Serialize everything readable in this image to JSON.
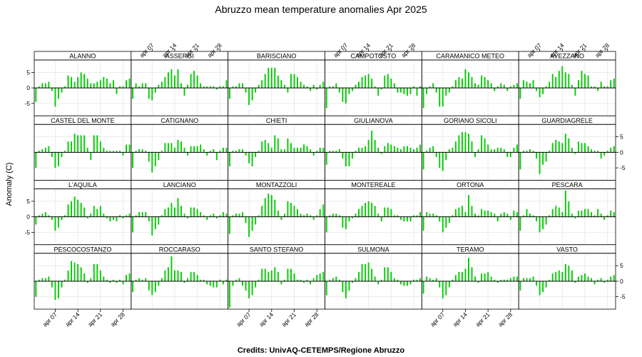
{
  "chart_data": {
    "type": "bar",
    "title": "Abruzzo mean temperature anomalies Apr 2025",
    "ylabel": "Anomaly (C)",
    "caption": "Credits: UnivAQ-CETEMPS/Regione Abruzzo",
    "ylim": [
      -9,
      9
    ],
    "y_ticks": [
      -5,
      0,
      5
    ],
    "x_range": [
      1,
      30
    ],
    "x_ticks": [
      {
        "day": 7,
        "label": "apr 07"
      },
      {
        "day": 14,
        "label": "apr 14"
      },
      {
        "day": 21,
        "label": "apr 21"
      },
      {
        "day": 28,
        "label": "apr 28"
      }
    ],
    "grid": true,
    "bar_color": "#00cc00",
    "layout": {
      "columns": 6,
      "rows": 4
    },
    "series": [
      {
        "name": "ALANNO",
        "values": [
          -4.5,
          0.5,
          1.5,
          1.5,
          2.0,
          -1.0,
          -6.0,
          -3.5,
          -1.5,
          0.5,
          4.0,
          3.5,
          2.0,
          3.5,
          5.0,
          4.5,
          3.0,
          1.5,
          1.5,
          2.0,
          2.5,
          3.5,
          3.0,
          1.5,
          2.5,
          -2.0,
          0.5,
          0.5,
          2.5,
          3.0
        ]
      },
      {
        "name": "ASSERGI",
        "values": [
          -3.5,
          1.5,
          0.5,
          1.5,
          1.5,
          -3.5,
          -4.0,
          -1.5,
          1.0,
          2.0,
          3.5,
          5.0,
          6.0,
          4.0,
          6.0,
          1.5,
          -2.5,
          1.0,
          4.5,
          5.5,
          4.0,
          1.5,
          0.5,
          0.5,
          0.5,
          0.5,
          -0.5,
          0.5,
          0.5,
          2.5
        ]
      },
      {
        "name": "BARISCIANO",
        "values": [
          -3.5,
          0.5,
          0.5,
          1.5,
          1.5,
          -1.5,
          -5.5,
          -4.0,
          -1.5,
          1.0,
          2.5,
          4.5,
          6.5,
          6.5,
          6.5,
          4.0,
          2.5,
          1.0,
          -1.5,
          4.5,
          4.5,
          3.5,
          2.0,
          1.0,
          0.5,
          -1.0,
          1.0,
          -0.5,
          1.0,
          2.0
        ]
      },
      {
        "name": "CAMPOTOSTO",
        "values": [
          -6.5,
          0.5,
          0.5,
          1.5,
          -1.5,
          -4.5,
          -5.0,
          -2.0,
          -1.0,
          1.0,
          2.0,
          3.5,
          4.0,
          4.5,
          3.0,
          0.5,
          -2.5,
          -0.5,
          4.0,
          4.5,
          3.0,
          1.5,
          -1.5,
          -1.5,
          -2.0,
          -2.5,
          -2.0,
          0.5,
          -2.5,
          0.5
        ]
      },
      {
        "name": "CARAMANICO METEO",
        "values": [
          -6.5,
          -2.0,
          0.5,
          1.5,
          -1.5,
          -6.0,
          -6.0,
          -2.5,
          -1.5,
          0.5,
          2.5,
          3.5,
          3.0,
          6.0,
          5.0,
          3.5,
          1.5,
          1.0,
          4.0,
          3.5,
          2.5,
          1.5,
          -1.0,
          0.5,
          1.5,
          1.0,
          -1.0,
          0.5,
          1.0,
          1.5
        ]
      },
      {
        "name": "AVEZZANO",
        "values": [
          -3.5,
          2.5,
          2.0,
          1.5,
          2.5,
          -1.0,
          -3.0,
          -2.0,
          0.5,
          2.0,
          4.5,
          3.5,
          5.5,
          7.0,
          5.0,
          4.5,
          1.0,
          -2.5,
          2.5,
          5.5,
          4.5,
          4.0,
          0.5,
          0.5,
          -1.0,
          2.0,
          0.5,
          0.5,
          2.5,
          3.0
        ]
      },
      {
        "name": "CASTEL DEL MONTE",
        "values": [
          -5.0,
          0.5,
          1.0,
          1.5,
          2.0,
          -1.5,
          -5.0,
          -4.5,
          -1.5,
          0.5,
          3.5,
          3.5,
          6.0,
          5.5,
          5.5,
          5.5,
          1.5,
          -2.5,
          5.5,
          5.5,
          3.5,
          1.5,
          0.5,
          0.5,
          0.5,
          0.5,
          0.5,
          -1.0,
          2.5,
          2.5
        ]
      },
      {
        "name": "CATIGNANO",
        "values": [
          -5.0,
          0.5,
          1.0,
          1.0,
          0.5,
          -3.0,
          -6.5,
          -4.5,
          -2.5,
          0.5,
          3.0,
          3.0,
          3.0,
          1.5,
          4.0,
          3.5,
          1.5,
          -1.0,
          2.0,
          2.0,
          2.0,
          2.5,
          1.0,
          -1.0,
          0.5,
          1.0,
          -2.5,
          0.5,
          1.5,
          1.5
        ]
      },
      {
        "name": "CHIETI",
        "values": [
          -4.5,
          0.5,
          0.5,
          1.0,
          1.0,
          -1.0,
          -3.5,
          -4.5,
          -1.5,
          0.5,
          3.5,
          4.0,
          3.0,
          1.5,
          5.5,
          4.5,
          1.0,
          1.0,
          4.5,
          3.0,
          1.5,
          1.5,
          1.5,
          2.5,
          2.0,
          1.0,
          -1.0,
          0.5,
          1.5,
          1.5
        ]
      },
      {
        "name": "GIULIANOVA",
        "values": [
          -4.0,
          0.5,
          0.5,
          0.5,
          1.0,
          -2.0,
          -4.5,
          -4.5,
          -2.0,
          0.5,
          1.5,
          1.5,
          2.0,
          4.0,
          7.0,
          4.0,
          1.5,
          -0.5,
          2.0,
          3.0,
          2.5,
          2.0,
          1.5,
          1.0,
          2.0,
          2.0,
          1.5,
          1.0,
          1.5,
          2.5
        ]
      },
      {
        "name": "GORIANO SICOLI",
        "values": [
          -5.5,
          0.5,
          1.5,
          2.0,
          -1.5,
          -5.0,
          -6.0,
          -2.5,
          1.0,
          1.5,
          3.5,
          5.5,
          6.5,
          6.5,
          6.0,
          3.5,
          -1.5,
          1.0,
          5.5,
          4.5,
          2.5,
          1.0,
          1.0,
          1.5,
          1.5,
          1.0,
          -1.5,
          -1.5,
          1.5,
          2.5
        ]
      },
      {
        "name": "GUARDIAGRELE",
        "values": [
          -5.5,
          0.5,
          0.5,
          1.0,
          0.5,
          -2.0,
          -7.0,
          -4.0,
          -3.0,
          0.5,
          3.0,
          4.0,
          3.5,
          3.0,
          6.0,
          4.5,
          1.5,
          -0.5,
          3.5,
          3.0,
          3.0,
          2.0,
          1.0,
          0.5,
          0.5,
          -2.0,
          -1.0,
          0.5,
          1.5,
          2.0
        ]
      },
      {
        "name": "L'AQUILA",
        "values": [
          -2.5,
          0.5,
          1.0,
          1.5,
          0.5,
          -1.0,
          -4.5,
          -3.5,
          -1.0,
          0.5,
          4.0,
          5.0,
          6.5,
          5.5,
          4.5,
          3.0,
          -0.5,
          1.0,
          3.5,
          2.5,
          3.5,
          1.0,
          -0.5,
          -1.5,
          -1.0,
          -1.5,
          0.5,
          -0.5,
          0.5,
          1.0
        ]
      },
      {
        "name": "LANCIANO",
        "values": [
          -5.0,
          0.5,
          1.5,
          1.5,
          1.5,
          -1.5,
          -6.0,
          -4.0,
          -2.5,
          0.5,
          2.5,
          3.0,
          4.5,
          3.0,
          6.0,
          3.5,
          1.0,
          -0.5,
          3.0,
          3.0,
          2.5,
          1.5,
          0.5,
          -1.0,
          0.5,
          1.0,
          -0.5,
          0.5,
          1.5,
          1.0
        ]
      },
      {
        "name": "MONTAZZOLI",
        "values": [
          -5.5,
          0.5,
          1.0,
          1.0,
          1.5,
          -2.0,
          -6.5,
          -4.5,
          -2.5,
          0.5,
          3.5,
          6.0,
          7.5,
          7.0,
          5.5,
          2.0,
          -1.0,
          1.0,
          5.0,
          4.5,
          3.5,
          2.5,
          1.0,
          0.5,
          1.0,
          0.5,
          -1.0,
          0.5,
          2.5,
          4.0
        ]
      },
      {
        "name": "MONTEREALE",
        "values": [
          -5.0,
          0.5,
          1.0,
          1.0,
          0.5,
          -3.5,
          -4.0,
          -1.5,
          -0.5,
          1.0,
          2.5,
          3.5,
          4.5,
          5.0,
          4.5,
          3.5,
          1.0,
          -1.5,
          3.0,
          3.0,
          2.5,
          0.5,
          0.5,
          -1.0,
          -1.5,
          -1.5,
          -1.5,
          0.5,
          0.5,
          1.5
        ]
      },
      {
        "name": "ORTONA",
        "values": [
          -4.5,
          1.5,
          1.0,
          1.0,
          0.5,
          -1.5,
          -5.0,
          -3.5,
          -2.0,
          0.5,
          2.5,
          3.0,
          3.5,
          1.5,
          7.0,
          3.5,
          1.0,
          0.5,
          2.5,
          2.0,
          2.0,
          1.5,
          1.0,
          -1.5,
          1.0,
          1.5,
          1.0,
          -1.0,
          2.0,
          1.5
        ]
      },
      {
        "name": "PESCARA",
        "values": [
          -4.5,
          0.5,
          2.5,
          1.0,
          0.5,
          -1.5,
          -5.0,
          -4.0,
          -2.5,
          0.5,
          2.5,
          3.5,
          3.0,
          1.5,
          8.5,
          5.0,
          1.0,
          -0.5,
          2.0,
          2.0,
          2.5,
          2.5,
          1.5,
          0.5,
          2.5,
          1.0,
          -1.0,
          0.5,
          2.0,
          1.5
        ]
      },
      {
        "name": "PESCOCOSTANZO",
        "values": [
          -5.0,
          0.5,
          1.0,
          1.0,
          1.5,
          -2.0,
          -6.0,
          -5.5,
          -2.0,
          0.5,
          3.5,
          6.5,
          6.0,
          5.5,
          4.5,
          2.5,
          -0.5,
          1.0,
          5.5,
          5.5,
          3.5,
          1.5,
          0.5,
          -0.5,
          0.5,
          -0.5,
          0.5,
          -1.0,
          2.0,
          2.5
        ]
      },
      {
        "name": "ROCCARASO",
        "values": [
          -3.5,
          0.5,
          1.0,
          0.5,
          1.0,
          -3.0,
          -4.5,
          -3.5,
          -1.5,
          1.0,
          3.5,
          4.5,
          8.0,
          3.5,
          3.5,
          3.0,
          -0.5,
          1.0,
          3.0,
          3.0,
          2.0,
          0.5,
          0.5,
          -1.0,
          -1.5,
          -2.0,
          -2.0,
          0.5,
          -1.0,
          0.5
        ]
      },
      {
        "name": "SANTO STEFANO",
        "values": [
          -8.5,
          -1.5,
          0.5,
          1.0,
          -1.5,
          -3.0,
          -5.5,
          -4.5,
          -2.0,
          0.5,
          4.0,
          4.0,
          3.0,
          3.5,
          4.5,
          3.0,
          -1.0,
          0.5,
          4.0,
          4.0,
          2.5,
          0.5,
          0.5,
          -0.5,
          0.5,
          -1.0,
          1.0,
          2.0,
          2.5,
          3.0
        ]
      },
      {
        "name": "SULMONA",
        "values": [
          -4.5,
          0.5,
          1.0,
          1.5,
          0.5,
          -3.5,
          -5.5,
          -3.0,
          -0.5,
          1.0,
          3.0,
          5.5,
          5.5,
          6.0,
          4.0,
          1.5,
          -1.0,
          0.5,
          4.5,
          4.5,
          3.0,
          1.0,
          0.5,
          -1.0,
          -1.5,
          -1.5,
          -1.0,
          0.5,
          0.5,
          1.0
        ]
      },
      {
        "name": "TERAMO",
        "values": [
          -4.0,
          1.5,
          1.0,
          0.5,
          1.0,
          -2.0,
          -5.5,
          -4.5,
          -2.0,
          0.5,
          2.0,
          3.0,
          3.0,
          4.0,
          7.5,
          4.5,
          1.5,
          -0.5,
          2.5,
          2.5,
          3.0,
          1.5,
          0.5,
          -0.5,
          0.5,
          0.5,
          0.5,
          1.0,
          1.5,
          1.5
        ]
      },
      {
        "name": "VASTO",
        "values": [
          -3.0,
          1.0,
          1.0,
          1.0,
          1.5,
          -1.5,
          -4.5,
          -3.5,
          -2.0,
          0.5,
          2.5,
          3.0,
          3.5,
          3.0,
          5.5,
          5.0,
          3.5,
          -0.5,
          1.5,
          2.0,
          2.5,
          1.5,
          1.0,
          -1.0,
          0.5,
          1.0,
          -0.5,
          0.5,
          1.5,
          2.0
        ]
      }
    ]
  }
}
